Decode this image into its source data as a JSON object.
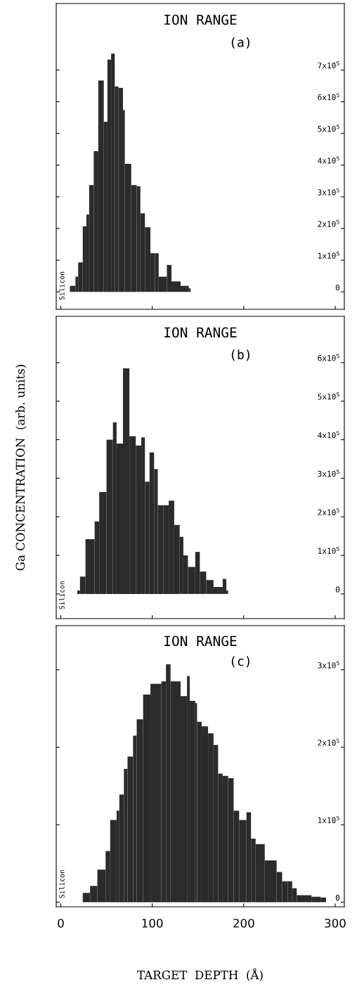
{
  "chart_data": [
    {
      "type": "histogram",
      "title": "ION RANGE",
      "annotations": [
        "(a)",
        "Silicon"
      ],
      "color": "#2b2b2b",
      "bins": [
        10,
        16,
        19,
        24,
        28,
        31,
        36,
        41,
        47,
        51,
        55,
        59,
        63,
        68,
        70,
        77,
        83,
        87,
        92,
        98,
        103,
        107,
        116,
        121,
        131,
        140,
        142
      ],
      "values": [
        19000,
        48000,
        93000,
        207000,
        244000,
        337000,
        444000,
        667000,
        537000,
        733000,
        752000,
        648000,
        644000,
        574000,
        404000,
        337000,
        333000,
        248000,
        204000,
        122000,
        122000,
        48000,
        85000,
        33000,
        19000,
        11000
      ],
      "xlim": [
        -5,
        310
      ],
      "xticks": [
        0,
        100,
        200,
        300
      ],
      "ylim": [
        -55000,
        910000
      ],
      "yticks": [
        0,
        {
          "value": 100000,
          "label": "1x10$^{5}$"
        },
        {
          "value": 200000,
          "label": "2x10$^{5}$"
        },
        {
          "value": 300000,
          "label": "3x10$^{5}$"
        },
        {
          "value": 400000,
          "label": "4x10$^{5}$"
        },
        {
          "value": 500000,
          "label": "5x10$^{5}$"
        },
        {
          "value": 600000,
          "label": "6x10$^{5}$"
        },
        {
          "value": 700000,
          "label": "7x10$^{5}$"
        }
      ],
      "tick_labels": "y"
    },
    {
      "type": "histogram",
      "title": "ION RANGE",
      "ylabel": "Ga CONCENTRATION  (arb. units)",
      "annotations": [
        "(b)",
        "Silicon"
      ],
      "color": "#2b2b2b",
      "bins": [
        18,
        21,
        27,
        37,
        42,
        50,
        57,
        61,
        68,
        75,
        82,
        88,
        92,
        97,
        102,
        106,
        112,
        118,
        124,
        130,
        134,
        139,
        147,
        152,
        159,
        167,
        177,
        181,
        183
      ],
      "values": [
        9000,
        45000,
        142000,
        188000,
        264000,
        400000,
        445000,
        390000,
        585000,
        409000,
        385000,
        406000,
        291000,
        367000,
        324000,
        230000,
        230000,
        242000,
        179000,
        148000,
        100000,
        70000,
        109000,
        58000,
        36000,
        18000,
        39000,
        9000
      ],
      "xlim": [
        -5,
        310
      ],
      "xticks": [
        0,
        100,
        200,
        300
      ],
      "ylim": [
        -64000,
        720000
      ],
      "yticks": [
        0,
        {
          "value": 100000,
          "label": "1x10$^{5}$"
        },
        {
          "value": 200000,
          "label": "2x10$^{5}$"
        },
        {
          "value": 300000,
          "label": "3x10$^{5}$"
        },
        {
          "value": 400000,
          "label": "4x10$^{5}$"
        },
        {
          "value": 500000,
          "label": "5x10$^{5}$"
        },
        {
          "value": 600000,
          "label": "6x10$^{5}$"
        }
      ],
      "tick_labels": "y"
    },
    {
      "type": "histogram",
      "title": "ION RANGE",
      "xlabel": "TARGET  DEPTH  (Å)",
      "annotations": [
        "(c)",
        "Silicon"
      ],
      "color": "#2b2b2b",
      "bins": [
        24,
        32,
        40,
        49,
        54,
        61,
        64,
        69,
        73,
        79,
        83,
        90,
        98,
        110,
        115,
        120,
        131,
        138,
        141,
        147,
        149,
        154,
        161,
        167,
        172,
        177,
        183,
        189,
        195,
        203,
        208,
        213,
        223,
        236,
        242,
        248,
        253,
        258,
        274,
        284,
        290
      ],
      "values": [
        12000,
        21000,
        42000,
        66000,
        106000,
        118000,
        139000,
        172000,
        188000,
        215000,
        236000,
        268000,
        282000,
        285000,
        307000,
        285000,
        266000,
        292000,
        260000,
        257000,
        233000,
        227000,
        218000,
        203000,
        166000,
        163000,
        160000,
        118000,
        106000,
        116000,
        82000,
        75000,
        54000,
        39000,
        27000,
        27000,
        18000,
        9000,
        7000,
        6000
      ],
      "xlim": [
        -5,
        310
      ],
      "xticks": [
        0,
        100,
        200,
        300
      ],
      "ylim": [
        -6000,
        357000
      ],
      "yticks": [
        0,
        {
          "value": 100000,
          "label": "1x10$^{5}$"
        },
        {
          "value": 200000,
          "label": "2x10$^{5}$"
        },
        {
          "value": 300000,
          "label": "3x10$^{5}$"
        }
      ]
    }
  ]
}
